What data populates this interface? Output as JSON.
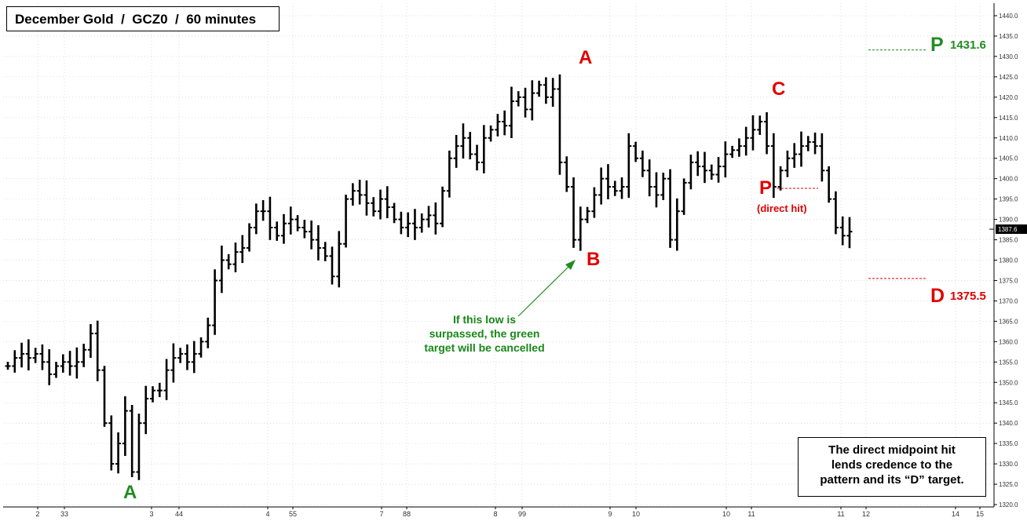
{
  "chart_data": {
    "type": "ohlc",
    "title": "December Gold  /  GCZ0  /  60 minutes",
    "ylim": [
      1320,
      1440
    ],
    "y_ticks": [
      1320.0,
      1325.0,
      1330.0,
      1335.0,
      1340.0,
      1345.0,
      1350.0,
      1355.0,
      1360.0,
      1365.0,
      1370.0,
      1375.0,
      1380.0,
      1385.0,
      1390.0,
      1395.0,
      1400.0,
      1405.0,
      1410.0,
      1415.0,
      1420.0,
      1425.0,
      1430.0,
      1435.0,
      1440.0
    ],
    "x_tick_labels": [
      "2",
      "33",
      "3",
      "44",
      "4",
      "55",
      "7",
      "88",
      "8",
      "99",
      "9",
      "10",
      "10",
      "11",
      "11",
      "12",
      "14",
      "15"
    ],
    "last_price": "1387.6",
    "price_path": [
      1354,
      1356,
      1357,
      1356,
      1357,
      1355,
      1352,
      1354,
      1355,
      1354,
      1355,
      1358,
      1362,
      1353,
      1340,
      1330,
      1335,
      1343,
      1328,
      1340,
      1346,
      1348,
      1348,
      1353,
      1356,
      1357,
      1355,
      1357,
      1360,
      1364,
      1375,
      1380,
      1379,
      1382,
      1383,
      1388,
      1392,
      1392,
      1388,
      1386,
      1389,
      1390,
      1388,
      1387,
      1385,
      1383,
      1381,
      1376,
      1384,
      1395,
      1397,
      1396,
      1394,
      1392,
      1395,
      1393,
      1390,
      1388,
      1389,
      1388,
      1390,
      1391,
      1389,
      1397,
      1405,
      1408,
      1410,
      1406,
      1404,
      1410,
      1412,
      1414,
      1413,
      1419,
      1420,
      1417,
      1421,
      1423,
      1420,
      1422,
      1404,
      1398,
      1385,
      1390,
      1392,
      1396,
      1400,
      1398,
      1397,
      1398,
      1408,
      1405,
      1402,
      1398,
      1396,
      1400,
      1385,
      1392,
      1399,
      1404,
      1403,
      1402,
      1401,
      1403,
      1406,
      1407,
      1408,
      1410,
      1412,
      1414,
      1408,
      1398,
      1402,
      1405,
      1406,
      1408,
      1409,
      1408,
      1402,
      1395,
      1388,
      1386,
      1387
    ],
    "points": [
      {
        "label": "A",
        "price": 1326.0,
        "color": "#228B22"
      },
      {
        "label": "A",
        "price": 1424.6,
        "color": "#e00000"
      },
      {
        "label": "B",
        "price": 1382.5,
        "color": "#e00000"
      },
      {
        "label": "C",
        "price": 1417.5,
        "color": "#e00000"
      },
      {
        "label": "P",
        "note": "(direct hit)",
        "color": "#e00000"
      }
    ],
    "targets": [
      {
        "letter": "P",
        "value": "1431.6",
        "price": 1431.6,
        "color": "#228B22"
      },
      {
        "letter": "D",
        "value": "1375.5",
        "price": 1375.5,
        "color": "#e00000"
      }
    ],
    "annotations": {
      "green_note": [
        "If this low is",
        "surpassed, the green",
        "target will be cancelled"
      ],
      "box_note": [
        "The direct midpoint hit",
        "lends credence to the",
        "pattern and its “D” target."
      ]
    },
    "grid": true,
    "grid_style": "dotted"
  }
}
